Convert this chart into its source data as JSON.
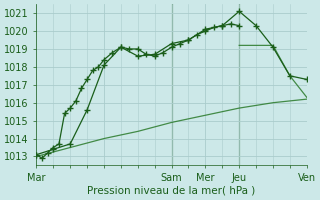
{
  "title": "",
  "xlabel": "Pression niveau de la mer( hPa )",
  "ylabel": "",
  "ylim": [
    1012.5,
    1021.5
  ],
  "xlim": [
    0,
    96
  ],
  "background_color": "#cce8e8",
  "grid_color": "#aacccc",
  "line_color_dark": "#1a5e1a",
  "line_color_mid": "#2a7a2a",
  "xtick_positions": [
    0,
    24,
    48,
    60,
    72,
    96
  ],
  "xtick_labels": [
    "Mar",
    "",
    "Sam",
    "Mer",
    "Jeu",
    "Ven"
  ],
  "ytick_positions": [
    1013,
    1014,
    1015,
    1016,
    1017,
    1018,
    1019,
    1020,
    1021
  ],
  "ytick_labels": [
    "1013",
    "1014",
    "1015",
    "1016",
    "1017",
    "1018",
    "1019",
    "1020",
    "1021"
  ],
  "vlines": [
    48,
    72
  ],
  "series1_x": [
    0,
    2,
    4,
    6,
    8,
    10,
    12,
    14,
    16,
    18,
    20,
    22,
    24,
    27,
    30,
    33,
    36,
    39,
    42,
    45,
    48,
    51,
    54,
    57,
    60,
    63,
    66,
    69,
    72
  ],
  "series1_y": [
    1013.1,
    1012.9,
    1013.2,
    1013.5,
    1013.7,
    1015.4,
    1015.7,
    1016.1,
    1016.8,
    1017.3,
    1017.8,
    1018.0,
    1018.4,
    1018.8,
    1019.1,
    1019.0,
    1019.0,
    1018.7,
    1018.6,
    1018.8,
    1019.1,
    1019.3,
    1019.5,
    1019.8,
    1020.0,
    1020.2,
    1020.3,
    1020.4,
    1020.3
  ],
  "series2_x": [
    0,
    6,
    12,
    18,
    24,
    30,
    36,
    42,
    48,
    54,
    60,
    66,
    72,
    78,
    84,
    90,
    96
  ],
  "series2_y": [
    1013.1,
    1013.4,
    1013.7,
    1015.6,
    1018.1,
    1019.1,
    1018.6,
    1018.7,
    1019.3,
    1019.5,
    1020.1,
    1020.3,
    1021.1,
    1020.3,
    1019.1,
    1017.5,
    1017.3
  ],
  "series3_x": [
    0,
    12,
    24,
    36,
    48,
    60,
    72,
    84,
    96
  ],
  "series3_y": [
    1013.0,
    1013.5,
    1014.0,
    1014.4,
    1014.9,
    1015.3,
    1015.7,
    1016.0,
    1016.2
  ],
  "series4_x": [
    72,
    78,
    84,
    90,
    96
  ],
  "series4_y": [
    1019.2,
    1019.2,
    1019.2,
    1017.5,
    1016.3
  ]
}
